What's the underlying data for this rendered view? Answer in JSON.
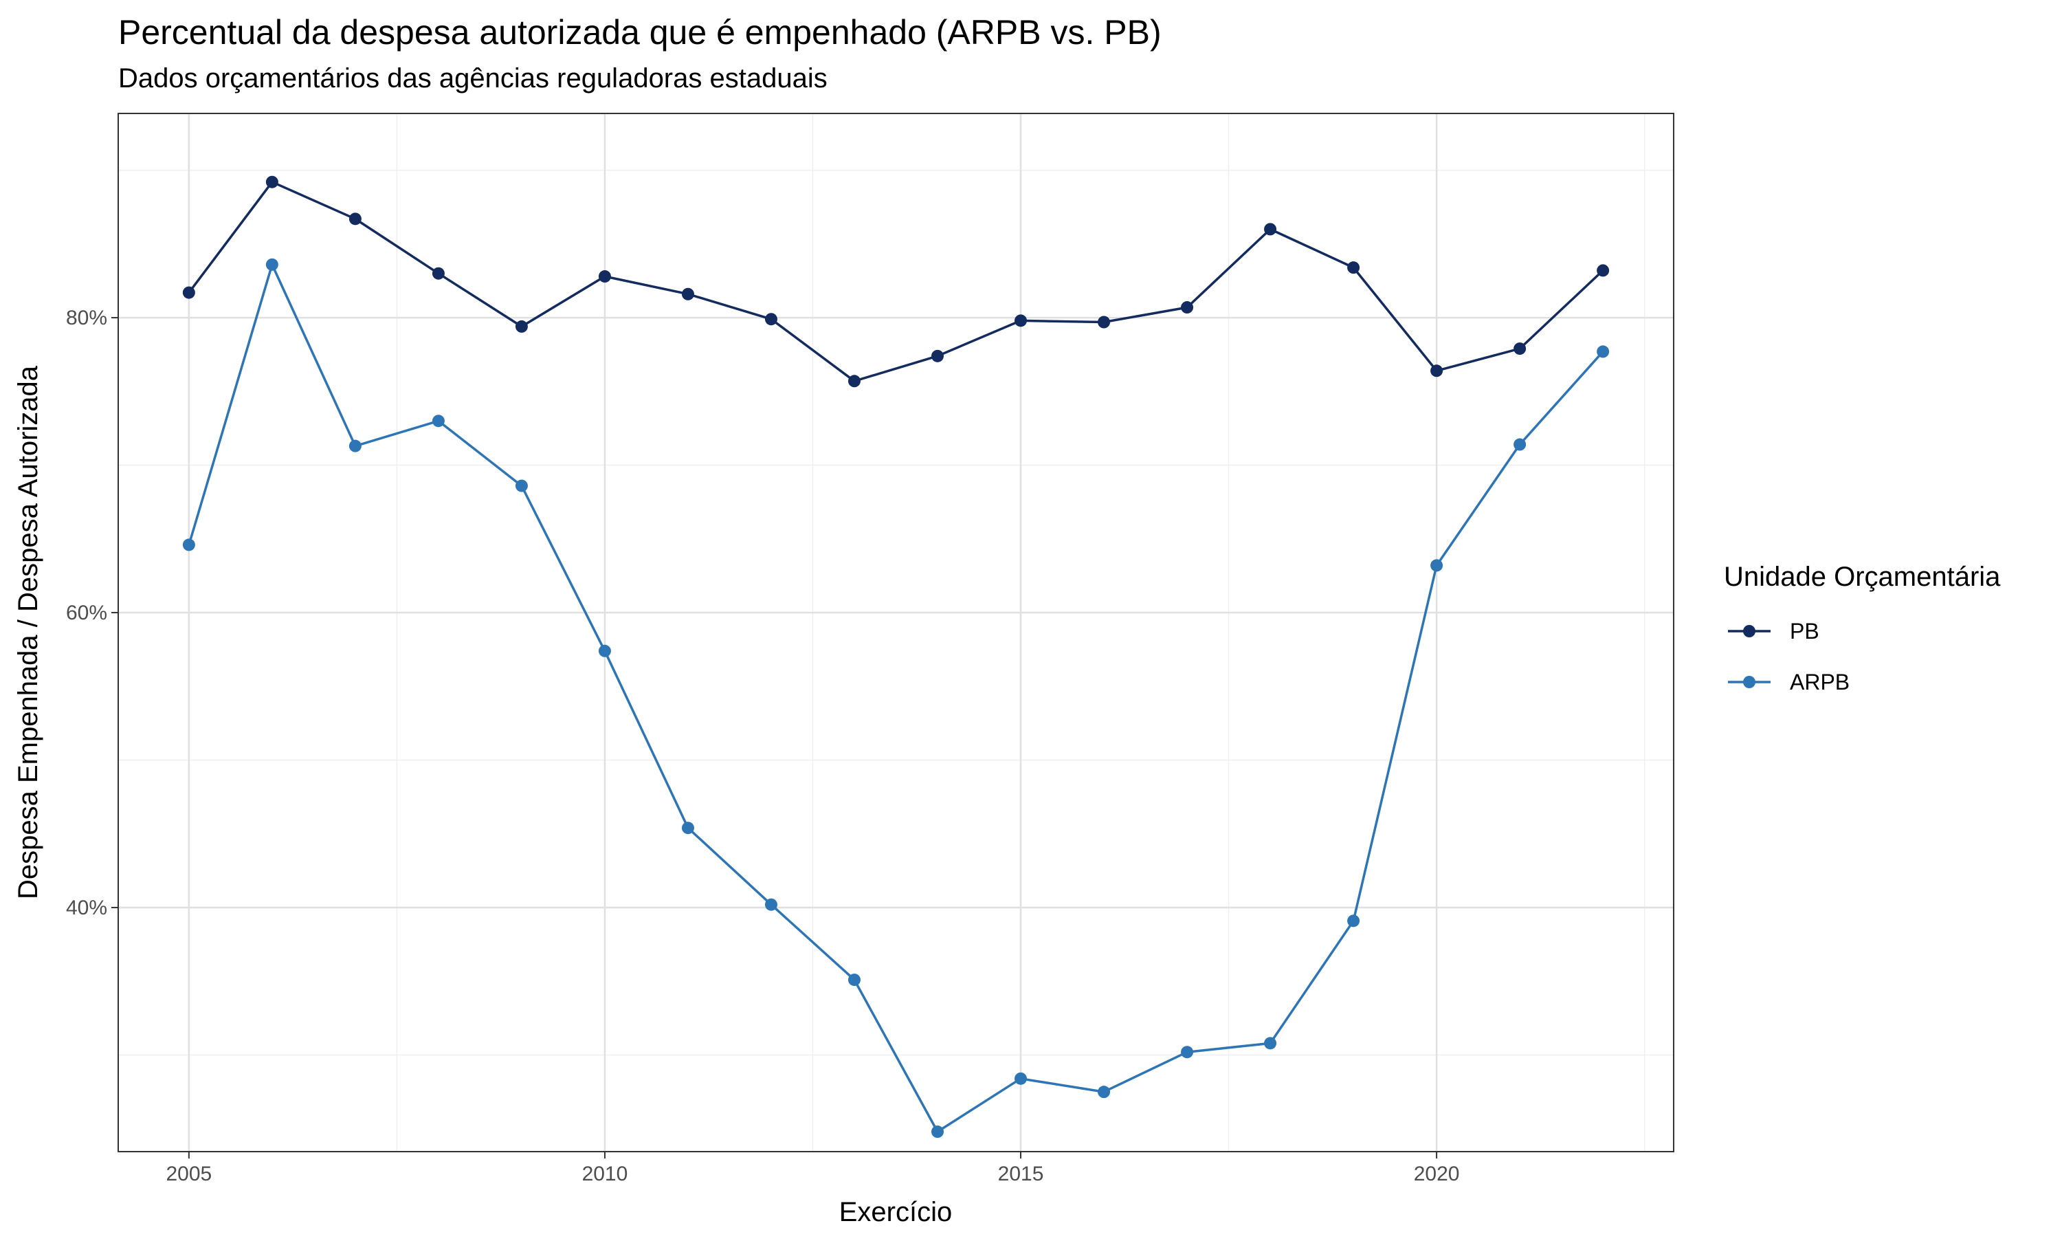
{
  "chart_data": {
    "type": "line",
    "title": "Percentual da despesa autorizada que é empenhado (ARPB vs. PB)",
    "subtitle": "Dados orçamentários das agências reguladoras estaduais",
    "xlabel": "Exercício",
    "ylabel": "Despesa Empenhada / Despesa Autorizada",
    "x": [
      2005,
      2006,
      2007,
      2008,
      2009,
      2010,
      2011,
      2012,
      2013,
      2014,
      2015,
      2016,
      2017,
      2018,
      2019,
      2020,
      2021,
      2022
    ],
    "xlim": [
      2004.15,
      2022.85
    ],
    "ylim": [
      0.2345,
      0.9385
    ],
    "x_ticks": [
      {
        "value": 2005,
        "label": "2005"
      },
      {
        "value": 2010,
        "label": "2010"
      },
      {
        "value": 2015,
        "label": "2015"
      },
      {
        "value": 2020,
        "label": "2020"
      }
    ],
    "x_minor_ticks": [
      2007.5,
      2012.5,
      2017.5,
      2022.5
    ],
    "y_ticks": [
      {
        "value": 0.4,
        "label": "40%"
      },
      {
        "value": 0.6,
        "label": "60%"
      },
      {
        "value": 0.8,
        "label": "80%"
      }
    ],
    "y_minor_ticks": [
      0.3,
      0.5,
      0.7,
      0.9
    ],
    "grid": true,
    "legend": {
      "title": "Unidade Orçamentária",
      "position": "right"
    },
    "series": [
      {
        "name": "PB",
        "color": "#132b5e",
        "values": [
          0.817,
          0.892,
          0.867,
          0.83,
          0.794,
          0.828,
          0.816,
          0.799,
          0.757,
          0.774,
          0.798,
          0.797,
          0.807,
          0.86,
          0.834,
          0.764,
          0.779,
          0.832
        ]
      },
      {
        "name": "ARPB",
        "color": "#2e75b6",
        "values": [
          0.646,
          0.836,
          0.713,
          0.73,
          0.686,
          0.574,
          0.454,
          0.402,
          0.351,
          0.248,
          0.284,
          0.275,
          0.302,
          0.308,
          0.391,
          0.632,
          0.714,
          0.777
        ]
      }
    ]
  }
}
